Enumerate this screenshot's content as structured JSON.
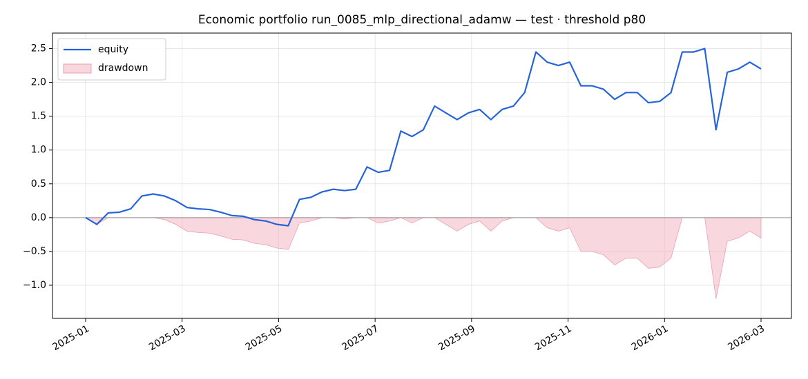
{
  "chart_data": {
    "type": "line",
    "title": "Economic portfolio run_0085_mlp_directional_adamw — test · threshold p80",
    "xticks": [
      "2025-01",
      "2025-03",
      "2025-05",
      "2025-07",
      "2025-09",
      "2025-11",
      "2026-01",
      "2026-03"
    ],
    "ylim": [
      -1.49,
      2.73
    ],
    "yticks": [
      {
        "value": -1,
        "label": "−1.0"
      },
      {
        "value": -0.5,
        "label": "−0.5"
      },
      {
        "value": 0,
        "label": "0.0"
      },
      0.5,
      {
        "value": 1,
        "label": "1.0"
      },
      1.5,
      {
        "value": 2,
        "label": "2.0"
      },
      2.5
    ],
    "grid": true,
    "legend": "upper left",
    "series": [
      {
        "name": "equity",
        "color": "#2563d9",
        "style": "line",
        "values": [
          0.0,
          -0.1,
          0.07,
          0.08,
          0.13,
          0.32,
          0.35,
          0.32,
          0.25,
          0.15,
          0.13,
          0.12,
          0.08,
          0.03,
          0.02,
          -0.03,
          -0.05,
          -0.1,
          -0.12,
          0.27,
          0.3,
          0.38,
          0.42,
          0.4,
          0.42,
          0.75,
          0.67,
          0.7,
          1.28,
          1.2,
          1.3,
          1.65,
          1.55,
          1.45,
          1.55,
          1.6,
          1.45,
          1.6,
          1.65,
          1.85,
          2.45,
          2.3,
          2.25,
          2.3,
          1.95,
          1.95,
          1.9,
          1.75,
          1.85,
          1.85,
          1.7,
          1.72,
          1.85,
          2.45,
          2.45,
          2.5,
          1.3,
          2.15,
          2.2,
          2.3,
          2.2
        ]
      },
      {
        "name": "drawdown",
        "color": "#f4b6c3",
        "style": "area",
        "values": [
          0,
          -0.1,
          0,
          0,
          0,
          0,
          0,
          -0.03,
          -0.1,
          -0.2,
          -0.22,
          -0.23,
          -0.27,
          -0.32,
          -0.33,
          -0.38,
          -0.4,
          -0.45,
          -0.47,
          -0.08,
          -0.05,
          0,
          0,
          -0.02,
          0,
          0,
          -0.08,
          -0.05,
          0,
          -0.08,
          0,
          0,
          -0.1,
          -0.2,
          -0.1,
          -0.05,
          -0.2,
          -0.05,
          0,
          0,
          0,
          -0.15,
          -0.2,
          -0.15,
          -0.5,
          -0.5,
          -0.55,
          -0.7,
          -0.6,
          -0.6,
          -0.75,
          -0.73,
          -0.6,
          0,
          0,
          0,
          -1.2,
          -0.35,
          -0.3,
          -0.2,
          -0.3
        ]
      }
    ]
  }
}
